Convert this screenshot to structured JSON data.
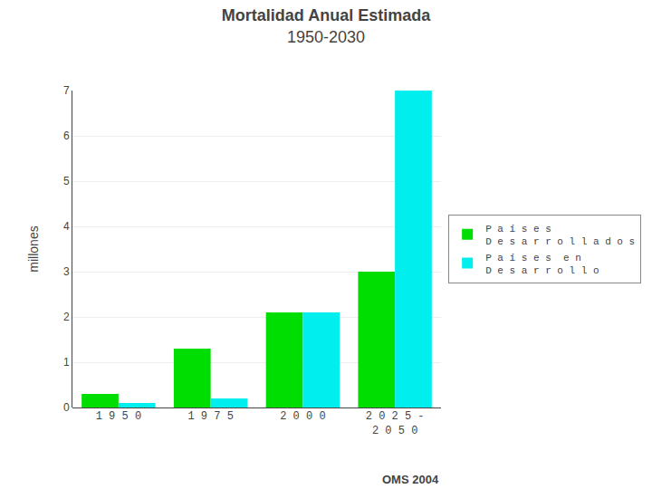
{
  "chart_data": {
    "type": "bar",
    "title": "Mortalidad Anual Estimada",
    "subtitle": "1950-2030",
    "y_label": "millones",
    "annotation": "OMS 2004",
    "categories": [
      "1 9 5 0",
      "1 9 7 5",
      "2 0 0 0",
      "2 0 2 5 -\n2 0 5 0"
    ],
    "series": [
      {
        "name": "P a í s e s\nD e s a r r o l l a d o s",
        "color": "#00DD00",
        "values": [
          0.3,
          1.3,
          2.1,
          3.0
        ]
      },
      {
        "name": "P a í s e s  e n\nD e s a r r o l l o",
        "color": "#00EEEE",
        "values": [
          0.1,
          0.2,
          2.1,
          7.0
        ]
      }
    ],
    "ylim": [
      0,
      7
    ],
    "yticks": [
      0,
      1,
      2,
      3,
      4,
      5,
      6,
      7
    ],
    "grid": true,
    "legend": "right"
  }
}
